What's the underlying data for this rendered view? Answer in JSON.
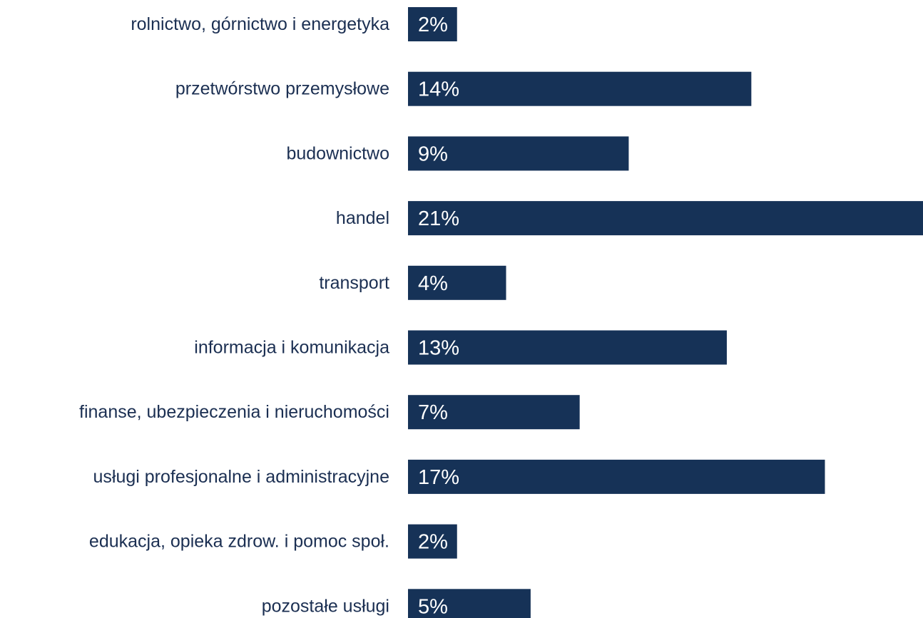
{
  "chart_data": {
    "type": "barh",
    "categories": [
      "rolnictwo, górnictwo i energetyka",
      "przetwórstwo przemysłowe",
      "budownictwo",
      "handel",
      "transport",
      "informacja i komunikacja",
      "finanse, ubezpieczenia i nieruchomości",
      "usługi profesjonalne i administracyjne",
      "edukacja, opieka zdrow. i pomoc społ.",
      "pozostałe usługi"
    ],
    "values": [
      2,
      14,
      9,
      21,
      4,
      13,
      7,
      17,
      2,
      5
    ],
    "value_labels": [
      "2%",
      "14%",
      "9%",
      "21%",
      "4%",
      "13%",
      "7%",
      "17%",
      "2%",
      "5%"
    ],
    "color": "#163257",
    "xlim": [
      0,
      21
    ]
  }
}
